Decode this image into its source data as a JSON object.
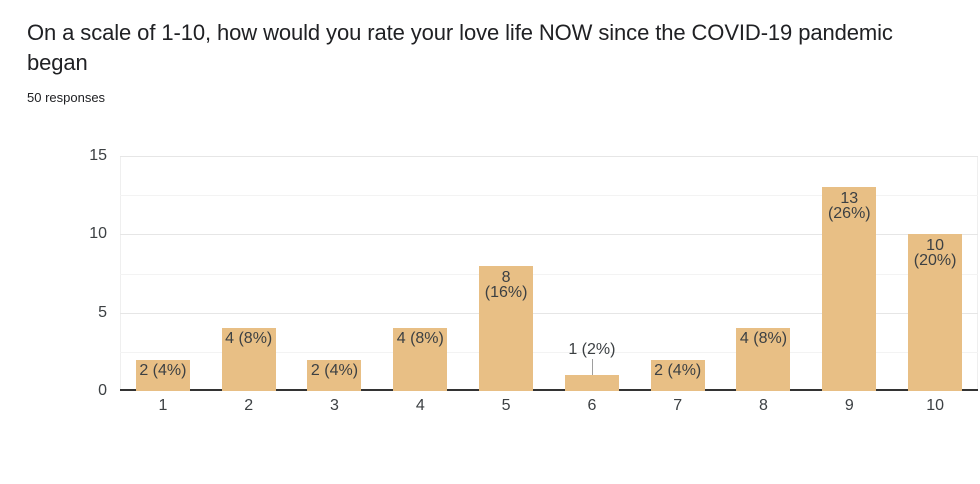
{
  "header": {
    "title": "On a scale of 1-10, how would you rate your love life NOW since the COVID-19 pandemic began",
    "title_lines": [
      "On a scale of 1-10, how would you rate your love life NOW since the COVID-19 pandemic",
      "began"
    ],
    "responses_count": "50 responses"
  },
  "chart_data": {
    "type": "bar",
    "title": "On a scale of 1-10, how would you rate your love life NOW since the COVID-19 pandemic began",
    "subtitle": "50 responses",
    "categories": [
      "1",
      "2",
      "3",
      "4",
      "5",
      "6",
      "7",
      "8",
      "9",
      "10"
    ],
    "values": [
      2,
      4,
      2,
      4,
      8,
      1,
      2,
      4,
      13,
      10
    ],
    "percents": [
      "4%",
      "8%",
      "4%",
      "8%",
      "16%",
      "2%",
      "4%",
      "8%",
      "26%",
      "20%"
    ],
    "bar_labels": [
      "2 (4%)",
      "4 (8%)",
      "2 (4%)",
      "4 (8%)",
      "8 (16%)",
      "1 (2%)",
      "2 (4%)",
      "4 (8%)",
      "13 (26%)",
      "10 (20%)"
    ],
    "xlabel": "",
    "ylabel": "",
    "y_ticks": [
      0,
      5,
      10,
      15
    ],
    "ylim": [
      0,
      15
    ],
    "grid": "horizontal, major every 5 with minor every 2.5",
    "legend": "none",
    "colors": {
      "bar": "#e8bf85",
      "axis_line": "#333333",
      "grid_major": "#e6e6e6",
      "grid_minor": "#f3f3f3",
      "tick_text": "#3c4043",
      "bar_label_text": "#3c4043",
      "leader_line": "#9e9e9e",
      "title_text": "#202124",
      "background": "#ffffff"
    }
  }
}
